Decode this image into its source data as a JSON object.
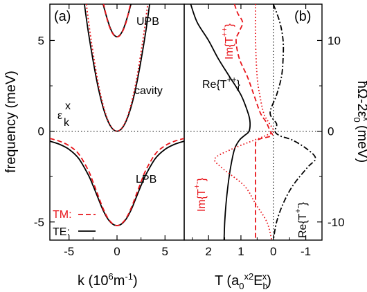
{
  "chart_data": [
    {
      "panel": "(a)",
      "type": "line",
      "xlabel": "k  (10",
      "xlabel_sup": "6",
      "xlabel_tail": "m",
      "xlabel_sup2": "-1",
      "xlabel_close": ")",
      "ylabel": "frequency (meV)",
      "xlim": [
        -7,
        7
      ],
      "ylim": [
        -6,
        7
      ],
      "xticks": [
        -5,
        0,
        5
      ],
      "yticks": [
        -5,
        0,
        5
      ],
      "annotations": {
        "upb": "UPB",
        "cavity": "cavity",
        "lpb": "LPB",
        "eps_main": "ε",
        "eps_sub": "k",
        "eps_sup": "x"
      },
      "legend": [
        {
          "name": "TM:",
          "style": "dashed",
          "color": "#e8141a"
        },
        {
          "name": "TE:",
          "style": "solid",
          "color": "#000000"
        }
      ],
      "series": [
        {
          "name": "TE",
          "k": [
            -1.7,
            -1.5,
            -1.25,
            -1.0,
            -0.75,
            -0.5,
            -0.25,
            0,
            0.25,
            0.5,
            0.75,
            1.0,
            1.25,
            1.5,
            1.7
          ],
          "values": [
            7.5,
            7.1,
            6.6,
            6.15,
            5.75,
            5.45,
            5.27,
            5.2,
            5.27,
            5.45,
            5.75,
            6.15,
            6.6,
            7.1,
            7.5
          ]
        },
        {
          "name": "TM",
          "k": [
            -1.6,
            -1.4,
            -1.2,
            -1.0,
            -0.75,
            -0.5,
            -0.25,
            0,
            0.25,
            0.5,
            0.75,
            1.0,
            1.2,
            1.4,
            1.6
          ],
          "values": [
            7.5,
            7.0,
            6.55,
            6.1,
            5.7,
            5.42,
            5.25,
            5.2,
            5.25,
            5.42,
            5.7,
            6.1,
            6.55,
            7.0,
            7.5
          ]
        },
        {
          "name": "cavity TE",
          "k": [
            -3.4,
            -3.0,
            -2.5,
            -2.0,
            -1.5,
            -1.0,
            -0.5,
            0,
            0.5,
            1.0,
            1.5,
            2.0,
            2.5,
            3.0,
            3.4
          ],
          "values": [
            7.0,
            5.5,
            3.9,
            2.5,
            1.4,
            0.62,
            0.15,
            0,
            0.15,
            0.62,
            1.4,
            2.5,
            3.9,
            5.5,
            7.0
          ]
        },
        {
          "name": "cavity TM",
          "k": [
            -3.2,
            -2.8,
            -2.4,
            -2.0,
            -1.5,
            -1.0,
            -0.5,
            0,
            0.5,
            1.0,
            1.5,
            2.0,
            2.4,
            2.8,
            3.2
          ],
          "values": [
            7.0,
            5.4,
            4.0,
            2.75,
            1.55,
            0.68,
            0.17,
            0,
            0.17,
            0.68,
            1.55,
            2.75,
            4.0,
            5.4,
            7.0
          ]
        },
        {
          "name": "LPB TE",
          "k": [
            -7,
            -6,
            -5,
            -4,
            -3,
            -2.5,
            -2,
            -1.5,
            -1,
            -0.5,
            0,
            0.5,
            1,
            1.5,
            2,
            2.5,
            3,
            4,
            5,
            6,
            7
          ],
          "values": [
            -0.55,
            -0.72,
            -1.0,
            -1.5,
            -2.4,
            -3.0,
            -3.65,
            -4.3,
            -4.8,
            -5.1,
            -5.2,
            -5.1,
            -4.8,
            -4.3,
            -3.65,
            -3.0,
            -2.4,
            -1.5,
            -1.0,
            -0.72,
            -0.55
          ]
        },
        {
          "name": "LPB TM",
          "k": [
            -7,
            -6,
            -5,
            -4,
            -3,
            -2.5,
            -2,
            -1.5,
            -1,
            -0.5,
            0,
            0.5,
            1,
            1.5,
            2,
            2.5,
            3,
            4,
            5,
            6,
            7
          ],
          "values": [
            -0.4,
            -0.55,
            -0.8,
            -1.25,
            -2.15,
            -2.8,
            -3.5,
            -4.2,
            -4.75,
            -5.08,
            -5.2,
            -5.08,
            -4.75,
            -4.2,
            -3.5,
            -2.8,
            -2.15,
            -1.25,
            -0.8,
            -0.55,
            -0.4
          ]
        }
      ]
    },
    {
      "panel": "(b)",
      "type": "line",
      "xlabel": "T  (a",
      "xlabel_sub": "0",
      "xlabel_sup": "x2",
      "xlabel_mid": "E",
      "xlabel_sub2": "b",
      "xlabel_sup2": "x",
      "xlabel_close": ")",
      "ylabel_right": "ħΩ-2ε",
      "ylabel_right_sub": "0",
      "ylabel_right_sup": "x",
      "ylabel_right_unit": " (meV)",
      "xlim": [
        2.75,
        -1.5
      ],
      "ylim": [
        -12,
        14
      ],
      "xticks": [
        2,
        1,
        0,
        -1
      ],
      "yticks": [
        -10,
        0,
        10
      ],
      "annotations": {
        "re_tpp": "Re{T",
        "re_tpp_sup": "++",
        "im_tpp": "Im{T",
        "im_tpp_sup": "++",
        "im_tpm": "Im{T",
        "im_tpm_sup": "+-",
        "re_tpm": "Re{T",
        "re_tpm_sup": "+-",
        "brace": "}"
      },
      "series": [
        {
          "name": "Re{T++}",
          "color": "#000000",
          "style": "solid",
          "y": [
            14,
            12,
            10,
            8,
            6,
            4,
            2,
            1,
            0,
            -0.5,
            -1,
            -2,
            -4,
            -6,
            -8,
            -10,
            -12
          ],
          "values": [
            2.55,
            2.35,
            2.0,
            1.7,
            1.35,
            1.0,
            0.78,
            0.72,
            0.75,
            0.9,
            1.05,
            1.2,
            1.32,
            1.4,
            1.46,
            1.5,
            1.52
          ]
        },
        {
          "name": "Im{T++}",
          "color": "#e8141a",
          "style": "dashed",
          "y": [
            14,
            13,
            12,
            11,
            10,
            8,
            6,
            4,
            2,
            1,
            0,
            -0.5,
            -1,
            -2,
            -4,
            -6,
            -8,
            -10,
            -12
          ],
          "values": [
            1.2,
            1.1,
            0.95,
            1.05,
            1.15,
            1.05,
            0.8,
            0.6,
            0.4,
            0.22,
            0.1,
            0.05,
            0.5,
            0.55,
            0.55,
            0.55,
            0.55,
            0.55,
            0.55
          ]
        },
        {
          "name": "Im{T+-}",
          "color": "#e8141a",
          "style": "dotted",
          "y": [
            14,
            10,
            6,
            4,
            2,
            1,
            0,
            -0.5,
            -1,
            -2,
            -3,
            -4,
            -6,
            -8,
            -10,
            -12
          ],
          "values": [
            0.55,
            0.55,
            0.5,
            0.42,
            0.3,
            0.15,
            0.0,
            0.25,
            0.6,
            1.3,
            1.8,
            1.6,
            0.9,
            0.55,
            0.2,
            0.05
          ]
        },
        {
          "name": "Re{T+-}",
          "color": "#000000",
          "style": "dashdot",
          "y": [
            14,
            12,
            10,
            8,
            6,
            4,
            2,
            0.8,
            0,
            -0.5,
            -1,
            -2,
            -3,
            -4,
            -6,
            -8,
            -10,
            -12
          ],
          "values": [
            0.0,
            -0.2,
            -0.3,
            -0.3,
            -0.25,
            -0.1,
            0.1,
            -0.1,
            -0.05,
            -0.2,
            -0.6,
            -1.05,
            -1.3,
            -1.05,
            -0.6,
            -0.3,
            -0.1,
            0.0
          ]
        }
      ]
    }
  ]
}
